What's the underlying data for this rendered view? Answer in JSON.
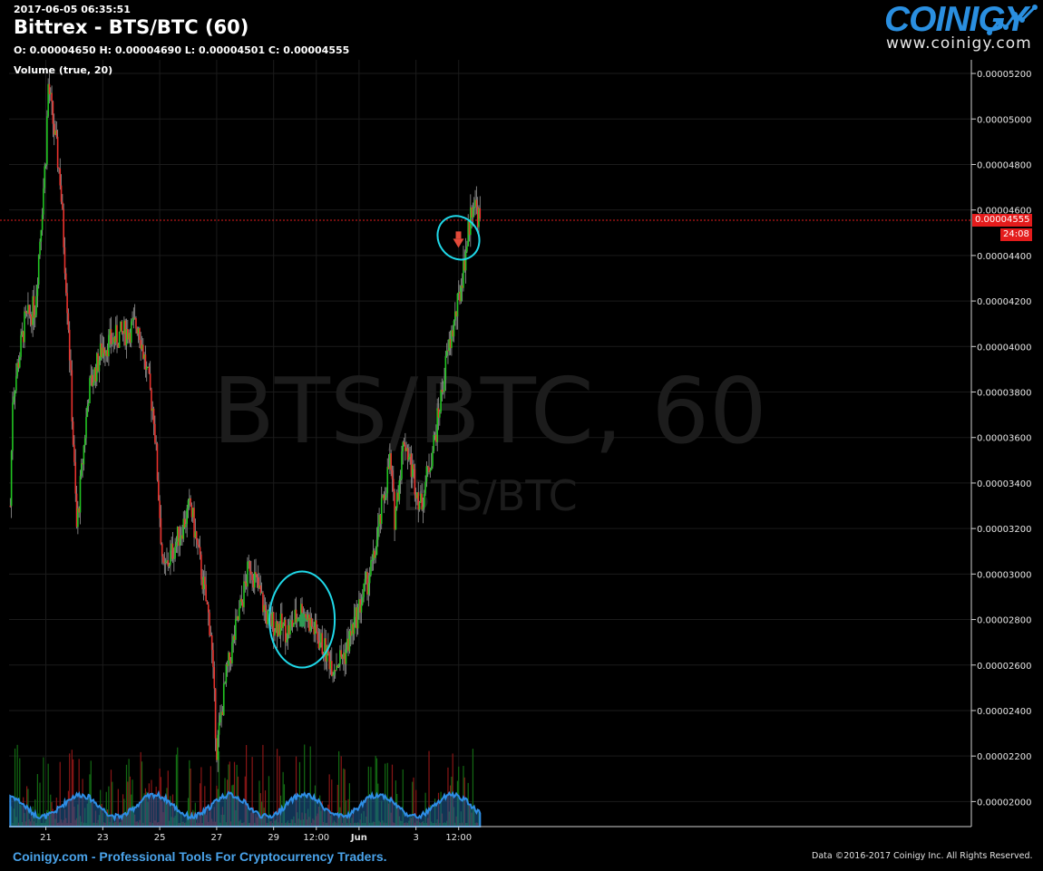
{
  "header": {
    "timestamp": "2017-06-05 06:35:51",
    "title": "Bittrex - BTS/BTC (60)",
    "ohlc": "O: 0.00004650 H: 0.00004690 L: 0.00004501 C: 0.00004555",
    "volume_label": "Volume (true, 20)"
  },
  "logo": {
    "wordmark": "COINIGY",
    "url": "www.coinigy.com"
  },
  "watermark": {
    "main": "BTS/BTC, 60",
    "sub": "BTS/BTC"
  },
  "price_marker": {
    "price": "0.00004555",
    "countdown": "24:08"
  },
  "footer": {
    "left": "Coinigy.com - Professional Tools For Cryptocurrency Traders.",
    "right": "Data ©2016-2017 Coinigy Inc. All Rights Reserved."
  },
  "colors": {
    "up": "#22c522",
    "down": "#e8322d",
    "volume_area": "#1f5f99",
    "annotation": "#1fd8e8",
    "price_line": "#e41c1c"
  },
  "chart_data": {
    "type": "candlestick",
    "interval": "60",
    "y_axis": {
      "range": [
        1.89e-05,
        5.26e-05
      ],
      "ticks": [
        "0.00002000",
        "0.00002200",
        "0.00002400",
        "0.00002600",
        "0.00002800",
        "0.00003000",
        "0.00003200",
        "0.00003400",
        "0.00003600",
        "0.00003800",
        "0.00004000",
        "0.00004200",
        "0.00004400",
        "0.00004600",
        "0.00004800",
        "0.00005000",
        "0.00005200"
      ]
    },
    "x_axis": {
      "ticks": [
        "21",
        "23",
        "25",
        "27",
        "29",
        "12:00",
        "Jun",
        "3",
        "12:00"
      ]
    },
    "price_path_approx": [
      {
        "x": "May 19 18:00",
        "close": 3.3e-05
      },
      {
        "x": "May 19 20:00",
        "close": 3.78e-05
      },
      {
        "x": "May 20 06:00",
        "close": 4.1e-05
      },
      {
        "x": "May 20 15:00",
        "close": 4.18e-05
      },
      {
        "x": "May 21 00:00",
        "close": 4.85e-05
      },
      {
        "x": "May 21 02:00",
        "close": 5.15e-05
      },
      {
        "x": "May 21 12:00",
        "close": 4.74e-05
      },
      {
        "x": "May 21 19:00",
        "close": 4.1e-05
      },
      {
        "x": "May 22 02:00",
        "close": 3.2e-05
      },
      {
        "x": "May 22 12:00",
        "close": 3.8e-05
      },
      {
        "x": "May 23 00:00",
        "close": 4e-05
      },
      {
        "x": "May 24 06:00",
        "close": 4.1e-05
      },
      {
        "x": "May 24 19:00",
        "close": 3.7e-05
      },
      {
        "x": "May 25 03:00",
        "close": 3e-05
      },
      {
        "x": "May 26 02:00",
        "close": 3.3e-05
      },
      {
        "x": "May 26 19:00",
        "close": 2.75e-05
      },
      {
        "x": "May 27 00:00",
        "close": 2.23e-05
      },
      {
        "x": "May 27 08:00",
        "close": 2.55e-05
      },
      {
        "x": "May 28 04:00",
        "close": 3.05e-05
      },
      {
        "x": "May 28 19:00",
        "close": 2.8e-05
      },
      {
        "x": "May 29 12:00",
        "close": 2.75e-05
      },
      {
        "x": "May 30 00:00",
        "close": 2.85e-05
      },
      {
        "x": "May 31 02:00",
        "close": 2.6e-05
      },
      {
        "x": "May 31 12:00",
        "close": 2.65e-05
      },
      {
        "x": "Jun 01 00:00",
        "close": 2.85e-05
      },
      {
        "x": "Jun 01 12:00",
        "close": 3.05e-05
      },
      {
        "x": "Jun 02 02:00",
        "close": 3.5e-05
      },
      {
        "x": "Jun 02 06:00",
        "close": 3.25e-05
      },
      {
        "x": "Jun 02 14:00",
        "close": 3.6e-05
      },
      {
        "x": "Jun 03 04:00",
        "close": 3.3e-05
      },
      {
        "x": "Jun 03 16:00",
        "close": 3.6e-05
      },
      {
        "x": "Jun 04 02:00",
        "close": 3.95e-05
      },
      {
        "x": "Jun 04 12:00",
        "close": 4.2e-05
      },
      {
        "x": "Jun 05 00:00",
        "close": 4.65e-05
      },
      {
        "x": "Jun 05 06:00",
        "close": 4.55e-05
      }
    ],
    "annotations": [
      {
        "type": "circle",
        "x": "May 30 00:00",
        "price": 2.8e-05,
        "marker": "buy-arrow"
      },
      {
        "type": "circle",
        "x": "Jun 04 21:00",
        "price": 4.45e-05,
        "marker": "sell-arrow"
      }
    ]
  }
}
